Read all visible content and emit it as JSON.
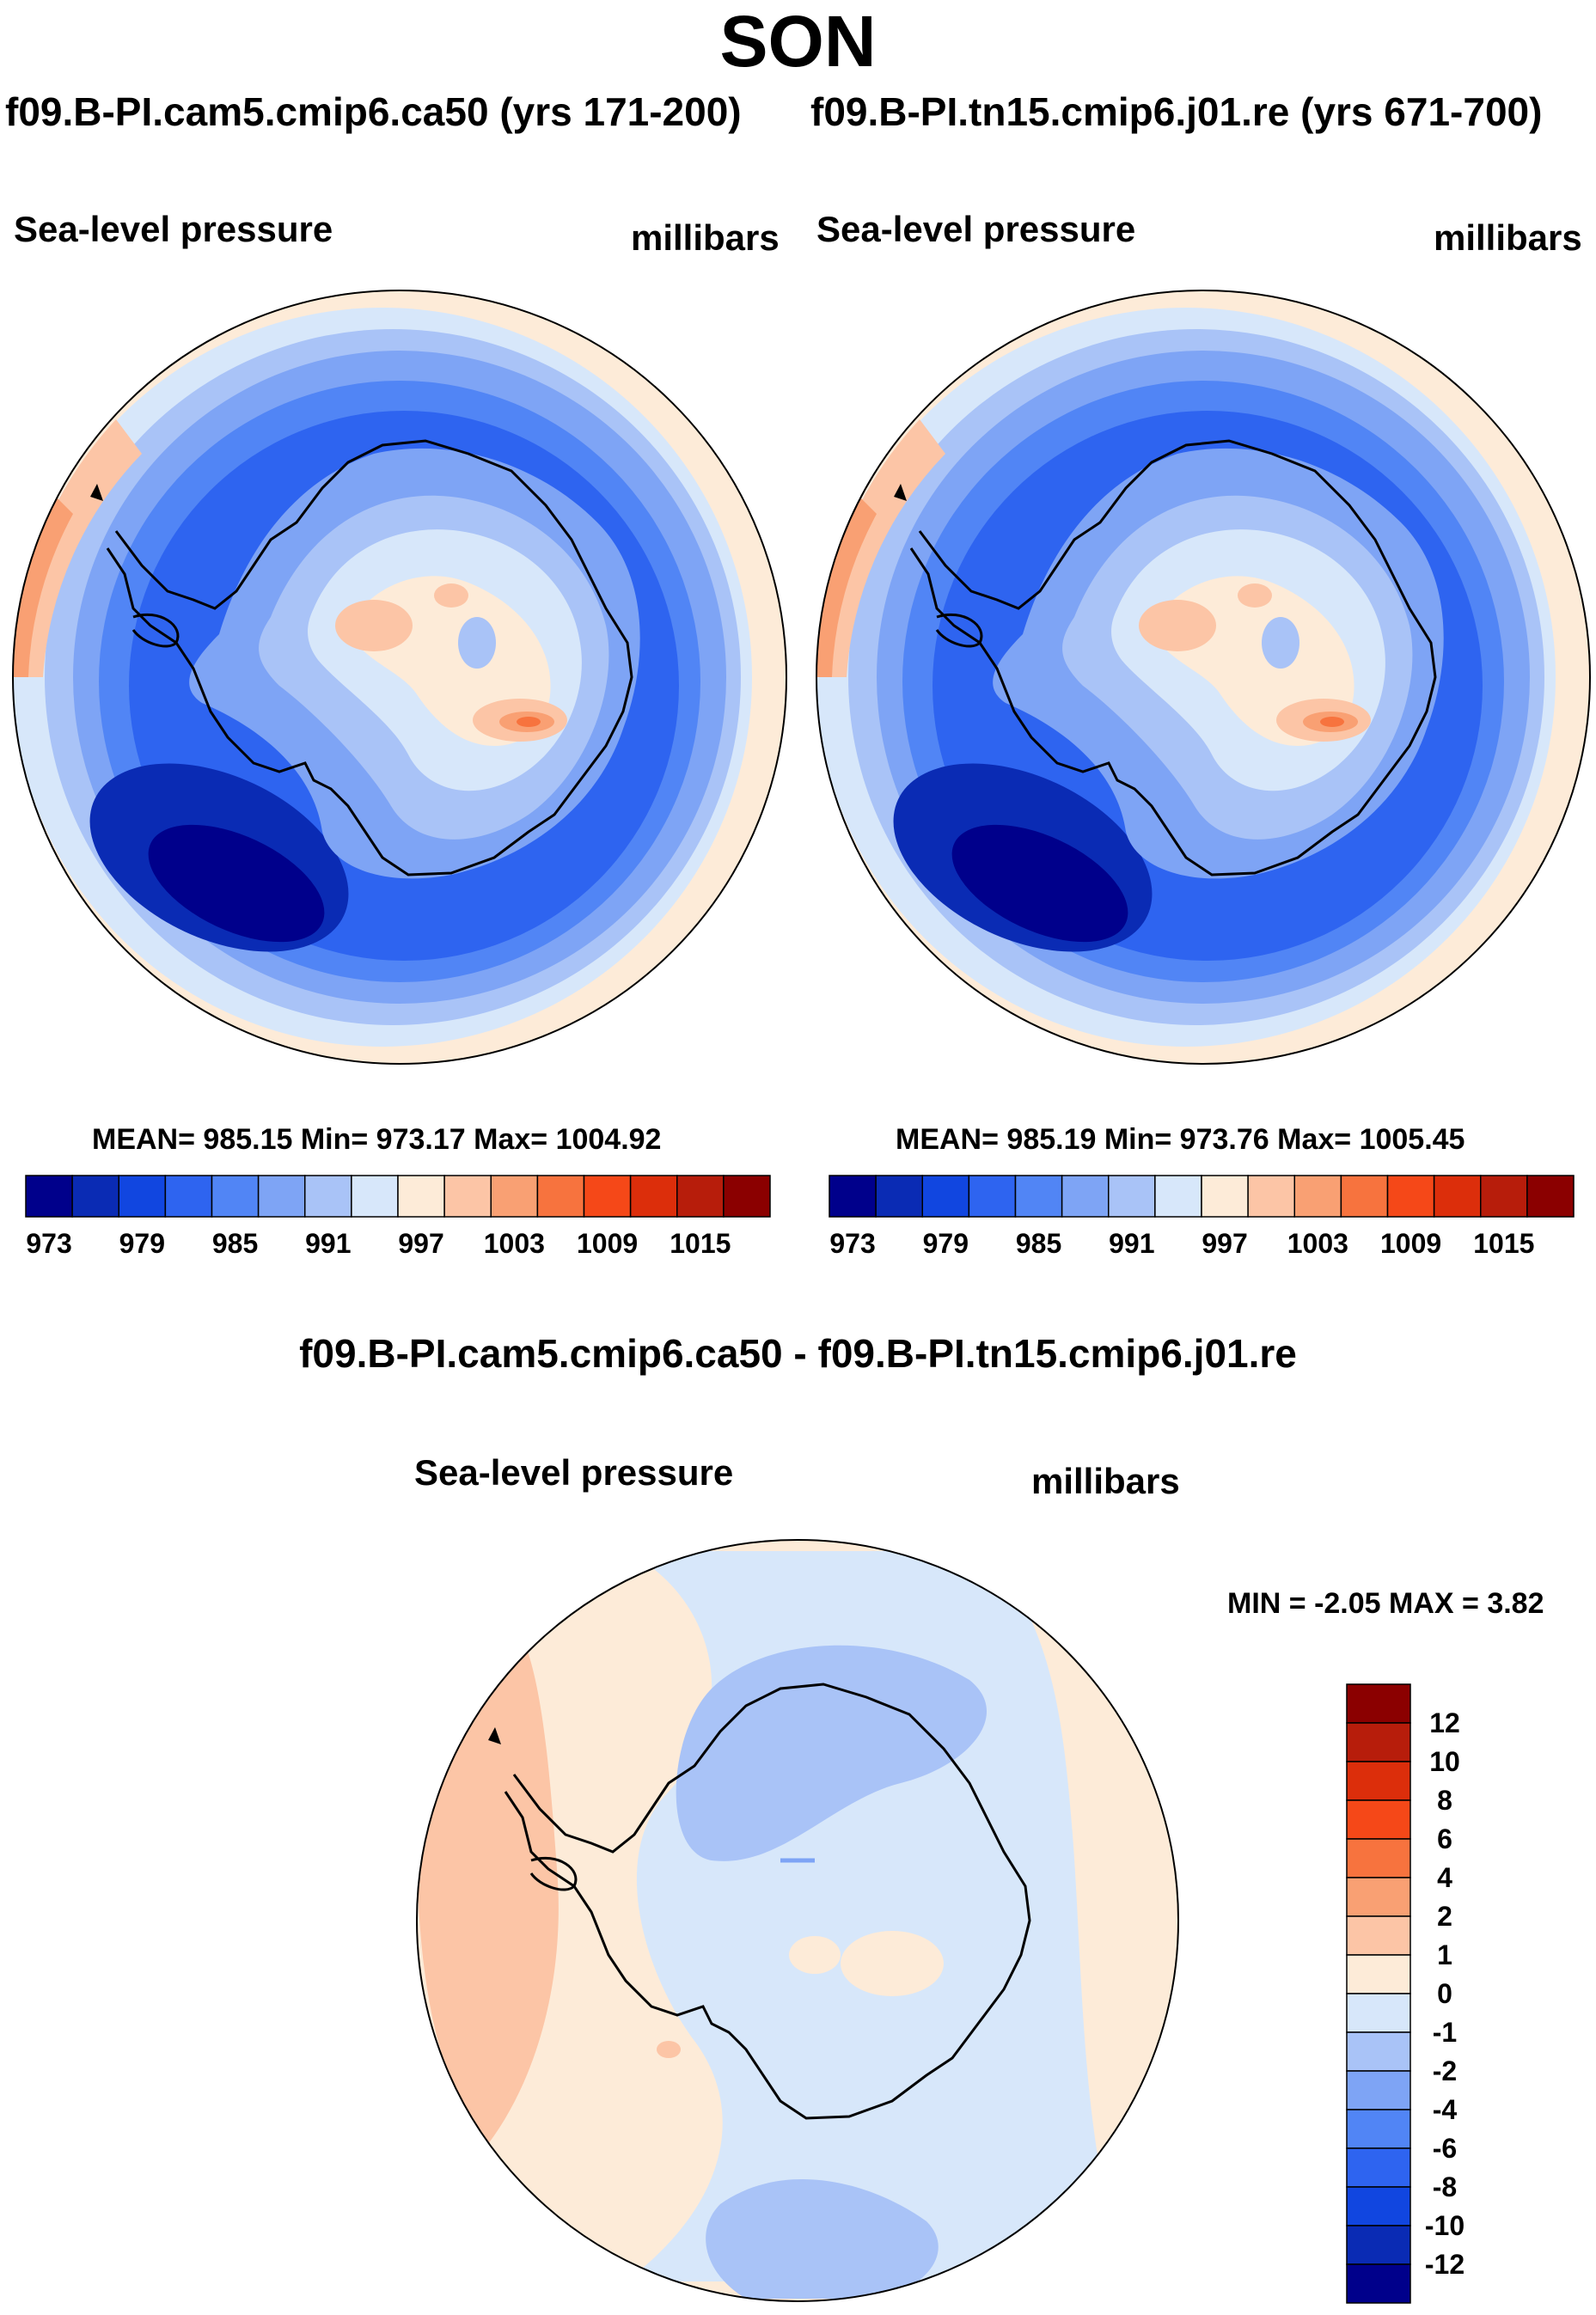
{
  "title": "SON",
  "panels": [
    {
      "case_title": "f09.B-PI.cam5.cmip6.ca50 (yrs 171-200)",
      "variable": "Sea-level pressure",
      "units": "millibars",
      "stats": "MEAN= 985.15  Min= 973.17  Max= 1004.92"
    },
    {
      "case_title": "f09.B-PI.tn15.cmip6.j01.re (yrs 671-700)",
      "variable": "Sea-level pressure",
      "units": "millibars",
      "stats": "MEAN= 985.19  Min= 973.76  Max= 1005.45"
    }
  ],
  "diff_panel": {
    "title": "f09.B-PI.cam5.cmip6.ca50 - f09.B-PI.tn15.cmip6.j01.re",
    "variable": "Sea-level pressure",
    "units": "millibars",
    "minmax": "MIN =  -2.05 MAX =    3.82"
  },
  "colorbar_abs": {
    "labels": [
      "973",
      "979",
      "985",
      "991",
      "997",
      "1003",
      "1009",
      "1015"
    ],
    "colors": [
      "#00008b",
      "#0a2bb4",
      "#1146e0",
      "#2e64f0",
      "#5185f5",
      "#7ea4f5",
      "#a9c3f7",
      "#d7e7fa",
      "#fdebd8",
      "#fcc5a6",
      "#f9a073",
      "#f7733e",
      "#f54818",
      "#dc2e0b",
      "#b71d0b",
      "#8b0000"
    ]
  },
  "colorbar_diff": {
    "labels": [
      "12",
      "10",
      "8",
      "6",
      "4",
      "2",
      "1",
      "0",
      "-1",
      "-2",
      "-4",
      "-6",
      "-8",
      "-10",
      "-12"
    ],
    "colors": [
      "#8b0000",
      "#b71d0b",
      "#dc2e0b",
      "#f54818",
      "#f7733e",
      "#f9a073",
      "#fcc5a6",
      "#fdebd8",
      "#d7e7fa",
      "#a9c3f7",
      "#7ea4f5",
      "#5185f5",
      "#2e64f0",
      "#1146e0",
      "#0a2bb4",
      "#00008b"
    ]
  }
}
